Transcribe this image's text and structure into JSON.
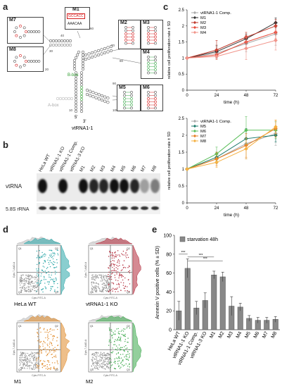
{
  "panels": {
    "a": "a",
    "b": "b",
    "c": "c",
    "d": "d",
    "e": "e"
  },
  "panel_a": {
    "title": "vtRNA1-1",
    "mutants": [
      "M1",
      "M2",
      "M3",
      "M4",
      "M5",
      "M6",
      "M7",
      "M8"
    ],
    "m1_top": "GCCACC",
    "m1_bottom": "AAACAA",
    "b_box": "B-box",
    "a_box": "A-box",
    "five_prime": "5'",
    "three_prime": "3'",
    "nums": [
      "40",
      "50",
      "60",
      "70",
      "80",
      "30",
      "20",
      "10",
      "90",
      "100"
    ]
  },
  "panel_b": {
    "lanes": [
      "HeLa WT",
      "vtRNA1-1 KO",
      "vtRNA1-1 Comp.",
      "vtRNA1-3 KO",
      "M1",
      "M2",
      "M3",
      "M4",
      "M5",
      "M6",
      "M7",
      "M8"
    ],
    "row1": "vtRNA",
    "row2": "5.8S rRNA"
  },
  "panel_c": {
    "ylabel": "relative cell proliferation rate ± SD",
    "xlabel": "time (h)",
    "colors": {
      "comp": "#aaaaaa",
      "M1": "#333333",
      "M2": "#c0392b",
      "M3": "#e74c3c",
      "M4": "#f1948a",
      "M5": "#1a7a6a",
      "M6": "#5cbf5c",
      "M7": "#e67e22",
      "M8": "#f5b041"
    }
  },
  "panel_d": {
    "labels": [
      "HeLa WT",
      "vtRNA1-1 KO",
      "M1",
      "M2"
    ],
    "axis_x": "Cyto-FITC-A",
    "axis_y": "Cyto-7-AAD-A",
    "q_labels": [
      "Q1",
      "Q2",
      "Q3",
      "Q4"
    ],
    "colors": [
      "#2aa6a8",
      "#b22a3a",
      "#e08a2a",
      "#3aa84a"
    ]
  },
  "chart_data": [
    {
      "type": "line",
      "title": "",
      "xlabel": "time (h)",
      "ylabel": "relative cell proliferation rate ± SD",
      "x": [
        0,
        24,
        48,
        72
      ],
      "ylim": [
        0,
        2.5
      ],
      "yticks": [
        0,
        0.5,
        1,
        1.5,
        2,
        2.5
      ],
      "legend": "top-left",
      "series": [
        {
          "name": "vtRNA1-1 Comp.",
          "values": [
            1.0,
            1.15,
            1.45,
            1.75
          ],
          "err": [
            0,
            0.2,
            0.25,
            0.35
          ],
          "color": "#aaaaaa"
        },
        {
          "name": "M1",
          "values": [
            1.0,
            1.2,
            1.6,
            2.1
          ],
          "err": [
            0,
            0.2,
            0.15,
            0.15
          ],
          "color": "#333333"
        },
        {
          "name": "M2",
          "values": [
            1.0,
            1.25,
            1.65,
            2.0
          ],
          "err": [
            0,
            0.3,
            0.15,
            0.2
          ],
          "color": "#c0392b"
        },
        {
          "name": "M3",
          "values": [
            1.0,
            1.1,
            1.5,
            1.8
          ],
          "err": [
            0,
            0.15,
            0.2,
            0.2
          ],
          "color": "#e74c3c"
        },
        {
          "name": "M4",
          "values": [
            1.0,
            1.05,
            1.3,
            1.55
          ],
          "err": [
            0,
            0.1,
            0.35,
            0.3
          ],
          "color": "#f1948a"
        }
      ]
    },
    {
      "type": "line",
      "title": "",
      "xlabel": "time (h)",
      "ylabel": "relative cell proliferation rate ± SD",
      "x": [
        0,
        24,
        48,
        72
      ],
      "ylim": [
        0,
        2.5
      ],
      "yticks": [
        0,
        0.5,
        1,
        1.5,
        2,
        2.5
      ],
      "legend": "top-left",
      "series": [
        {
          "name": "vtRNA1-1 Comp.",
          "values": [
            1.0,
            1.3,
            1.75,
            2.05
          ],
          "err": [
            0,
            0.15,
            0.45,
            0.35
          ],
          "color": "#aaaaaa"
        },
        {
          "name": "M5",
          "values": [
            1.0,
            1.35,
            1.9,
            2.0
          ],
          "err": [
            0,
            0.15,
            0.3,
            0.2
          ],
          "color": "#1a7a6a"
        },
        {
          "name": "M6",
          "values": [
            1.0,
            1.45,
            2.15,
            2.15
          ],
          "err": [
            0,
            0.2,
            0.4,
            0.25
          ],
          "color": "#5cbf5c"
        },
        {
          "name": "M7",
          "values": [
            1.0,
            1.3,
            1.7,
            2.2
          ],
          "err": [
            0,
            0.2,
            0.35,
            0.25
          ],
          "color": "#e67e22"
        },
        {
          "name": "M8",
          "values": [
            1.0,
            1.2,
            1.6,
            2.25
          ],
          "err": [
            0,
            0.15,
            0.3,
            0.2
          ],
          "color": "#f5b041"
        }
      ]
    },
    {
      "type": "bar",
      "title": "",
      "ylabel": "Annexin V positive cells (% ± SD)",
      "xlabel": "",
      "legend_label": "starvation 48h",
      "categories": [
        "HeLa WT",
        "vtRNA1-1 KO",
        "vtRNA1-1 Comp.",
        "vtRNA1-3 KO",
        "M1",
        "M2",
        "M3",
        "M4",
        "M5",
        "M6",
        "M7",
        "M8"
      ],
      "values": [
        20,
        65,
        23,
        31,
        58,
        56,
        25,
        24,
        12,
        10,
        10,
        11
      ],
      "err": [
        10,
        10,
        7,
        8,
        4,
        5,
        10,
        4,
        3,
        3,
        3,
        3
      ],
      "ylim": [
        0,
        100
      ],
      "yticks": [
        0,
        20,
        40,
        60,
        80,
        100
      ],
      "significance": "***",
      "color": "#888888"
    }
  ]
}
